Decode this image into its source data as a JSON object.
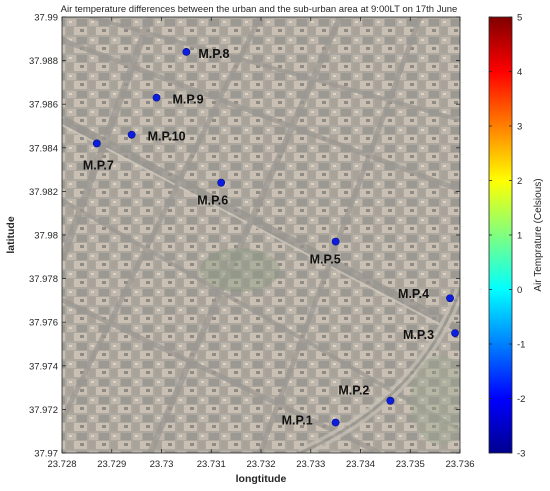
{
  "chart_data": {
    "type": "scatter",
    "title": "Air temperature differences between the urban and the sub-urban area at 9:00LT on 17th June",
    "xlabel": "longtitude",
    "ylabel": "latitude",
    "xlim": [
      23.728,
      23.736
    ],
    "ylim": [
      37.97,
      37.99
    ],
    "x_ticks": [
      "23.728",
      "23.729",
      "23.73",
      "23.731",
      "23.732",
      "23.733",
      "23.734",
      "23.735",
      "23.736"
    ],
    "y_ticks": [
      "37.97",
      "37.972",
      "37.974",
      "37.976",
      "37.978",
      "37.98",
      "37.982",
      "37.984",
      "37.986",
      "37.988",
      "37.99"
    ],
    "background": "aerial photograph of urban area",
    "marker_color": "#0a1ee0",
    "points": [
      {
        "label": "M.P.1",
        "x": 23.7335,
        "y": 37.9714,
        "value": -2
      },
      {
        "label": "M.P.2",
        "x": 23.7346,
        "y": 37.9724,
        "value": -2
      },
      {
        "label": "M.P.3",
        "x": 23.7359,
        "y": 37.9755,
        "value": -2
      },
      {
        "label": "M.P.4",
        "x": 23.7358,
        "y": 37.9771,
        "value": -2
      },
      {
        "label": "M.P.5",
        "x": 23.7335,
        "y": 37.9797,
        "value": -2
      },
      {
        "label": "M.P.6",
        "x": 23.7312,
        "y": 37.9824,
        "value": -2
      },
      {
        "label": "M.P.7",
        "x": 23.7287,
        "y": 37.9842,
        "value": -2
      },
      {
        "label": "M.P.8",
        "x": 23.7305,
        "y": 37.9884,
        "value": -2
      },
      {
        "label": "M.P.9",
        "x": 23.7299,
        "y": 37.9863,
        "value": -2
      },
      {
        "label": "M.P.10",
        "x": 23.7294,
        "y": 37.9846,
        "value": -2
      }
    ],
    "colorbar": {
      "label": "Air Temprature (Celsious)",
      "min": -3,
      "max": 5,
      "ticks": [
        "5",
        "4",
        "3",
        "2",
        "1",
        "0",
        "-1",
        "-2",
        "-3"
      ],
      "colormap": "jet"
    }
  }
}
